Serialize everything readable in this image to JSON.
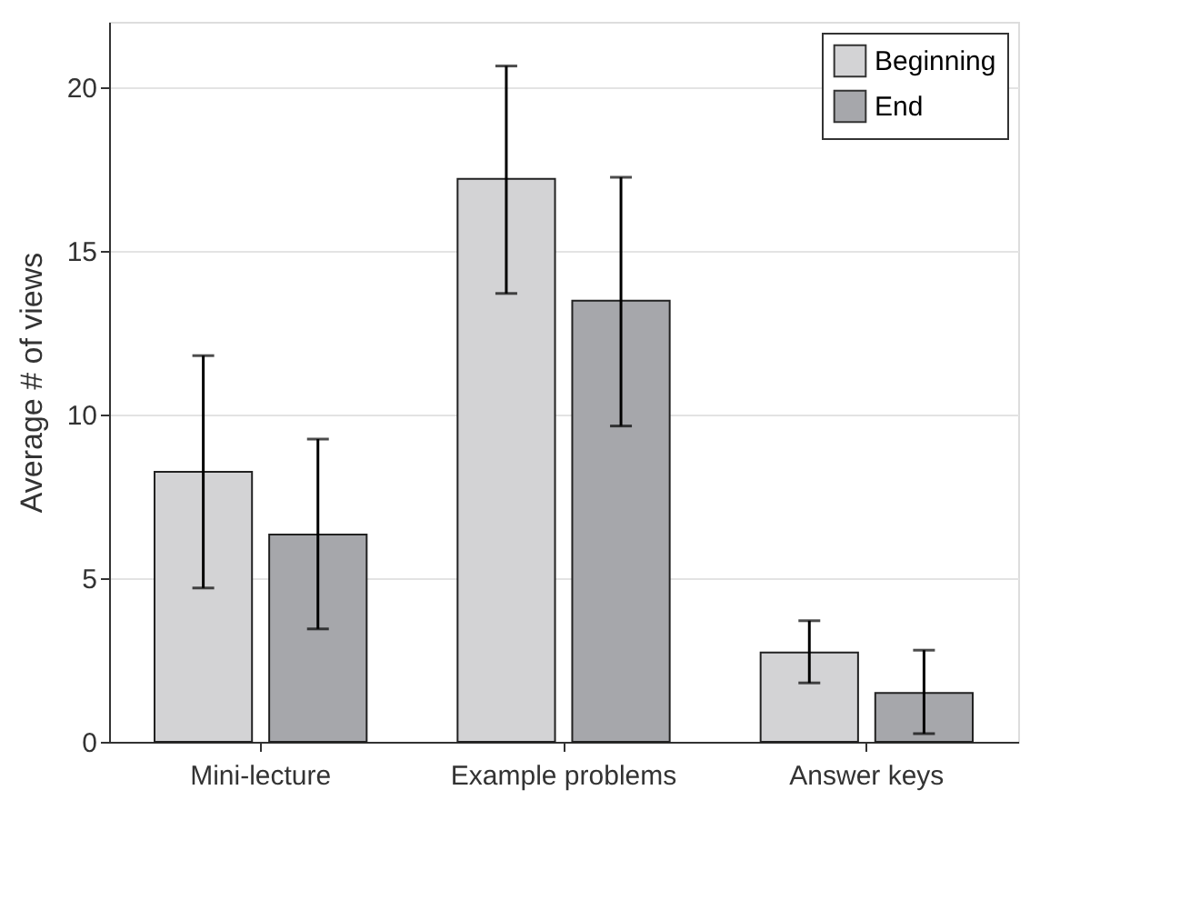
{
  "chart_data": {
    "type": "bar",
    "ylabel": "Average # of views",
    "categories": [
      "Mini-lecture",
      "Example problems",
      "Answer keys"
    ],
    "series": [
      {
        "name": "Beginning",
        "color": "#d3d3d5",
        "values": [
          8.25,
          17.2,
          2.73
        ],
        "errors": [
          [
            4.7,
            11.8
          ],
          [
            13.7,
            20.65
          ],
          [
            1.8,
            3.7
          ]
        ]
      },
      {
        "name": "End",
        "color": "#a6a7ab",
        "values": [
          6.33,
          13.48,
          1.49
        ],
        "errors": [
          [
            3.45,
            9.25
          ],
          [
            9.65,
            17.25
          ],
          [
            0.25,
            2.8
          ]
        ]
      }
    ],
    "ylim": [
      0,
      22
    ],
    "yticks": [
      0,
      5,
      10,
      15,
      20
    ],
    "grid": "y",
    "legend": "top right"
  }
}
